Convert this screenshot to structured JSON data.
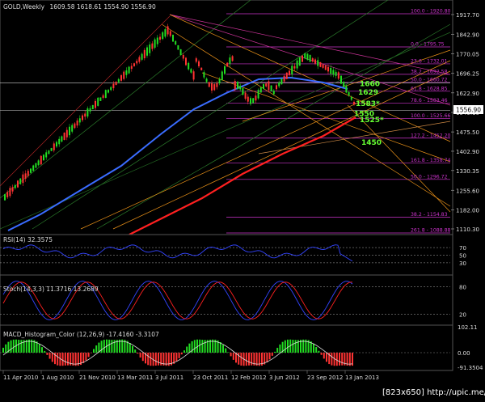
{
  "header": {
    "symbol": "GOLD,Weekly",
    "ohlc": "1609.58 1618.61 1554.90 1556.90"
  },
  "main_panel": {
    "price_labels": [
      "1917.70",
      "1842.90",
      "1770.05",
      "1696.25",
      "1622.90",
      "1549.10",
      "1475.50",
      "1402.90",
      "1330.35",
      "1255.60",
      "1182.00",
      "1110.30"
    ],
    "current_price": "1556.90",
    "fib_labels": [
      {
        "text": "100.0 - 1920.80",
        "price": 1920.8
      },
      {
        "text": "0.0 - 1795.75",
        "price": 1795.75
      },
      {
        "text": "23.6 - 1732.01",
        "price": 1732.01
      },
      {
        "text": "38.2 - 1692.58",
        "price": 1692.58
      },
      {
        "text": "50.0 - 1660.72",
        "price": 1662
      },
      {
        "text": "61.8 - 1628.85",
        "price": 1628.85
      },
      {
        "text": "78.6 - 1583.46",
        "price": 1583.46
      },
      {
        "text": "100.0 - 1525.66",
        "price": 1525.66
      },
      {
        "text": "127.2 - 1452.20",
        "price": 1452.2
      },
      {
        "text": "161.8 - 1358.74",
        "price": 1358.74
      },
      {
        "text": "50.0 - 1296.72",
        "price": 1296.72
      },
      {
        "text": "38.2 - 1154.83",
        "price": 1154.83
      },
      {
        "text": "261.8 - 1088.88",
        "price": 1095
      }
    ],
    "annotations": [
      {
        "text": "1660",
        "price": 1660
      },
      {
        "text": "1629",
        "price": 1629
      },
      {
        "text": "1583*",
        "price": 1586
      },
      {
        "text": "1550",
        "price": 1548
      },
      {
        "text": "1525*",
        "price": 1525
      },
      {
        "text": "1450",
        "price": 1440
      }
    ]
  },
  "rsi_panel": {
    "title": "RSI(14) 32.3575",
    "levels": [
      "70",
      "50",
      "30"
    ]
  },
  "stoch_panel": {
    "title": "Stoch(14,3,3) 11.3716 13.2689",
    "levels": [
      "80",
      "20"
    ]
  },
  "macd_panel": {
    "title": "MACD_Histogram_Color (12,26,9) -17.4160 -3.3107",
    "levels": [
      "102.11",
      "0.00",
      "-91.3504"
    ]
  },
  "time_axis": [
    "11 Apr 2010",
    "1 Aug 2010",
    "21 Nov 2010",
    "13 Mar 2011",
    "3 Jul 2011",
    "23 Oct 2011",
    "12 Feb 2012",
    "3 Jun 2012",
    "23 Sep 2012",
    "13 Jan 2013"
  ],
  "watermark": "[823x650] http://upic.me/",
  "colors": {
    "background": "#000000",
    "bull_candle": "#22dd22",
    "bear_candle": "#ff3333",
    "ma_red": "#ff2020",
    "ma_blue": "#3a6cff",
    "fib_line": "#cc33cc",
    "annotation": "#66ff33",
    "trend_orange": "#e89018",
    "trend_green": "#2a7a2a",
    "indicator_line": "#3344ff"
  }
}
